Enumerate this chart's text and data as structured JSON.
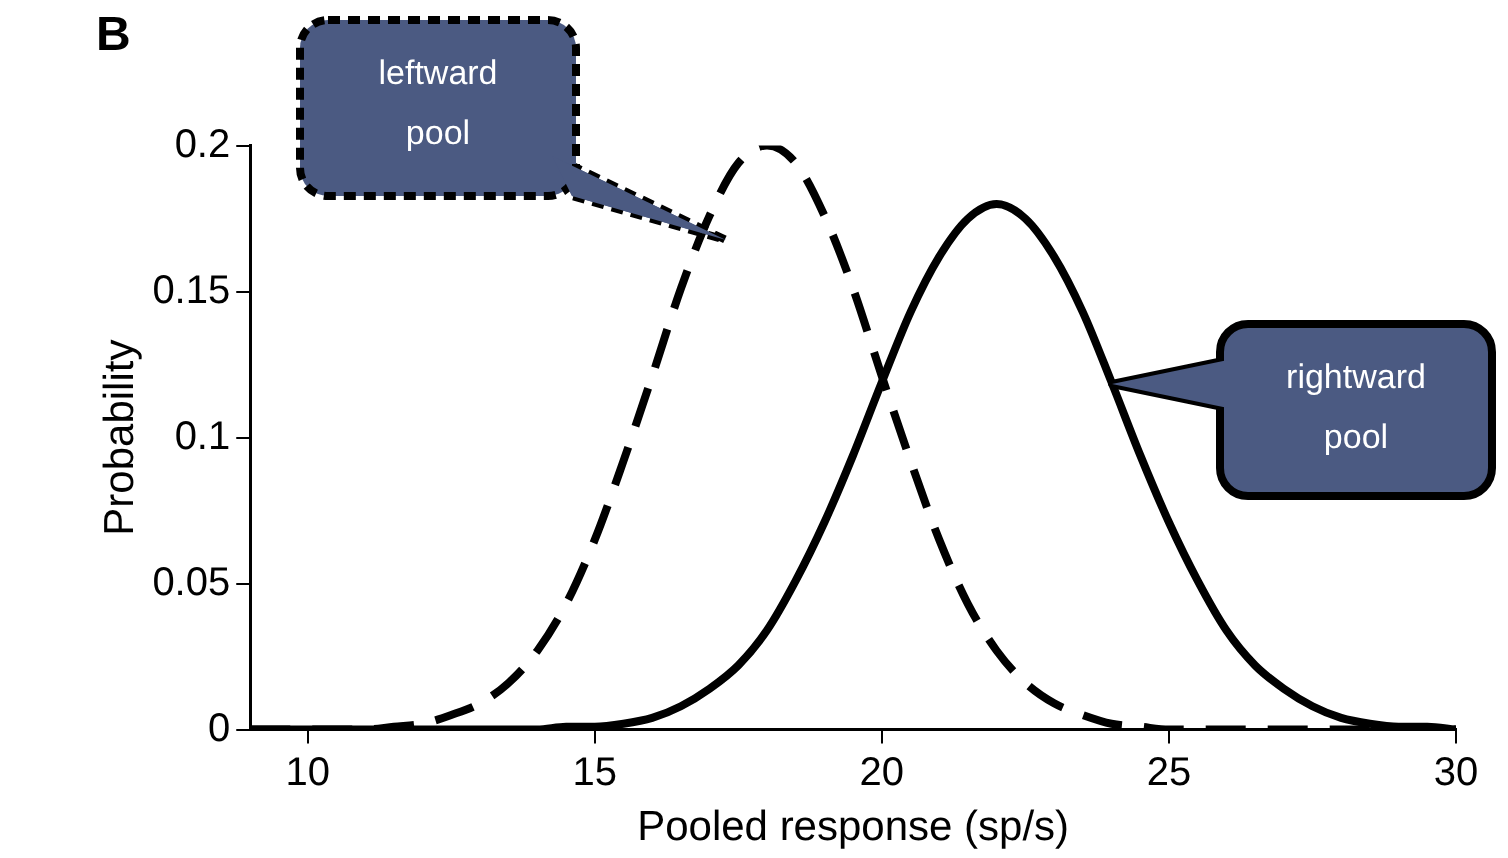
{
  "chart_data": {
    "type": "line",
    "title": "B",
    "xlabel": "Pooled response (sp/s)",
    "ylabel": "Probability",
    "x": [
      9,
      9.5,
      10,
      10.5,
      11,
      11.5,
      12,
      12.5,
      13,
      13.5,
      14,
      14.5,
      15,
      15.5,
      16,
      16.5,
      17,
      17.5,
      18,
      18.5,
      19,
      19.5,
      20,
      20.5,
      21,
      21.5,
      22,
      22.5,
      23,
      23.5,
      24,
      24.5,
      25,
      25.5,
      26,
      26.5,
      27,
      27.5,
      28,
      28.5,
      29,
      29.5,
      30
    ],
    "series": [
      {
        "color": "#000000",
        "line_style": "dashed",
        "values": [
          0,
          0,
          0,
          0,
          0,
          0.001,
          0.002,
          0.005,
          0.009,
          0.016,
          0.027,
          0.043,
          0.065,
          0.092,
          0.121,
          0.151,
          0.176,
          0.194,
          0.2,
          0.194,
          0.176,
          0.151,
          0.121,
          0.092,
          0.065,
          0.043,
          0.027,
          0.016,
          0.009,
          0.005,
          0.002,
          0.001,
          0,
          0,
          0,
          0,
          0,
          0,
          0,
          0,
          0,
          0,
          0
        ]
      },
      {
        "color": "#000000",
        "line_style": "solid",
        "values": [
          0,
          0,
          0,
          0,
          0,
          0,
          0,
          0,
          0,
          0,
          0,
          0.001,
          0.001,
          0.002,
          0.004,
          0.008,
          0.014,
          0.022,
          0.034,
          0.051,
          0.071,
          0.094,
          0.119,
          0.143,
          0.162,
          0.175,
          0.18,
          0.175,
          0.162,
          0.143,
          0.119,
          0.094,
          0.071,
          0.051,
          0.034,
          0.022,
          0.014,
          0.008,
          0.004,
          0.002,
          0.001,
          0.001,
          0
        ]
      }
    ],
    "xlim": [
      9,
      30
    ],
    "xticks": [
      10,
      15,
      20,
      25,
      30
    ],
    "ylim": [
      0,
      0.2
    ],
    "yticks": [
      0,
      0.05,
      0.1,
      0.15,
      0.2
    ],
    "marker": "none",
    "annotations": [
      "leftward pool",
      "rightward pool"
    ]
  }
}
